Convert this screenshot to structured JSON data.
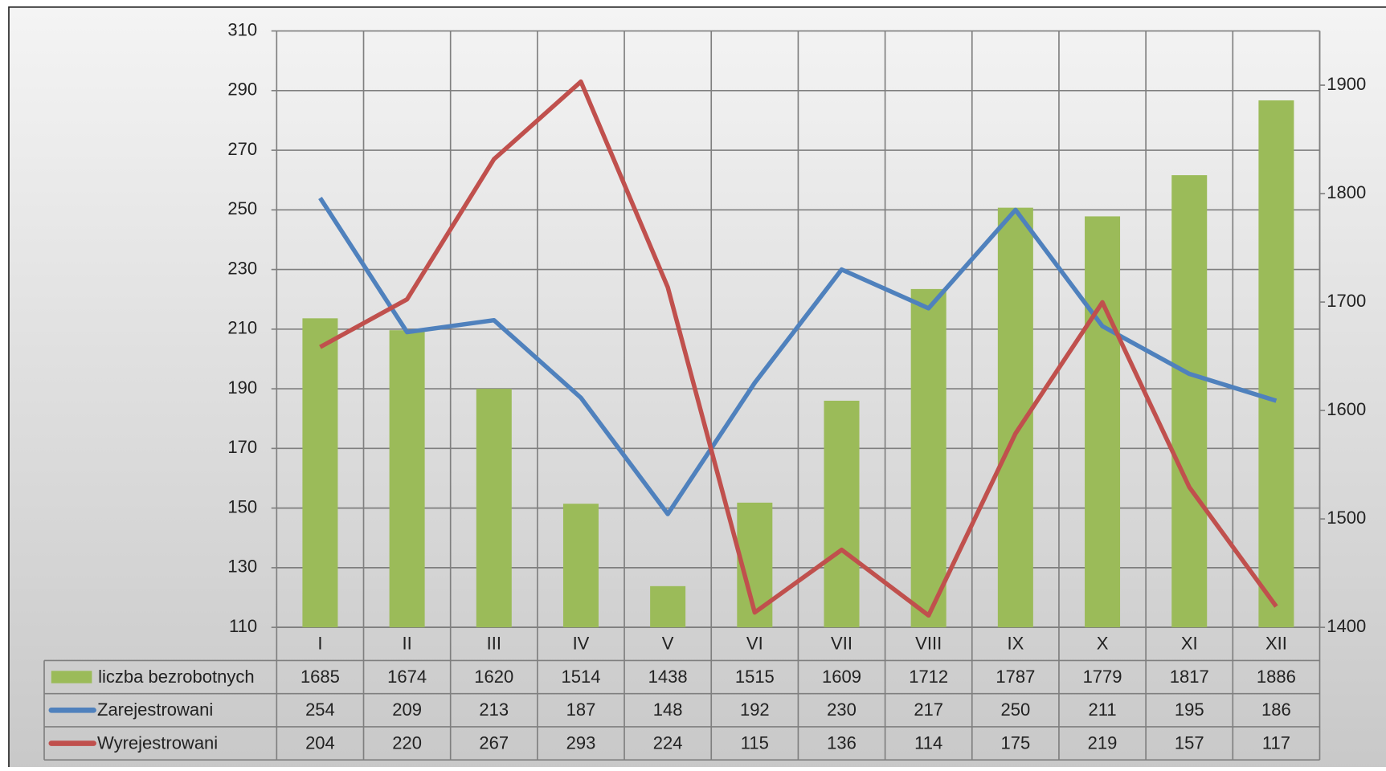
{
  "chart_data": {
    "type": "bar-line-table",
    "categories": [
      "I",
      "II",
      "III",
      "IV",
      "V",
      "VI",
      "VII",
      "VIII",
      "IX",
      "X",
      "XI",
      "XII"
    ],
    "series": [
      {
        "name": "liczba bezrobotnych",
        "type": "bar",
        "axis": "y2",
        "color": "#9bbb59",
        "values": [
          1685,
          1674,
          1620,
          1514,
          1438,
          1515,
          1609,
          1712,
          1787,
          1779,
          1817,
          1886
        ]
      },
      {
        "name": "Zarejestrowani",
        "type": "line",
        "color": "#4f81bd",
        "values": [
          254,
          209,
          213,
          187,
          148,
          192,
          230,
          217,
          250,
          211,
          195,
          186
        ]
      },
      {
        "name": "Wyrejestrowani",
        "type": "line",
        "color": "#c0504d",
        "values": [
          204,
          220,
          267,
          293,
          224,
          115,
          136,
          114,
          175,
          219,
          157,
          117
        ]
      }
    ],
    "ylim": [
      110,
      310
    ],
    "yticks": [
      110,
      130,
      150,
      170,
      190,
      210,
      230,
      250,
      270,
      290,
      310
    ],
    "y2lim": [
      1400,
      1950
    ],
    "y2ticks": [
      1400,
      1500,
      1600,
      1700,
      1800,
      1900
    ],
    "grid": true
  }
}
